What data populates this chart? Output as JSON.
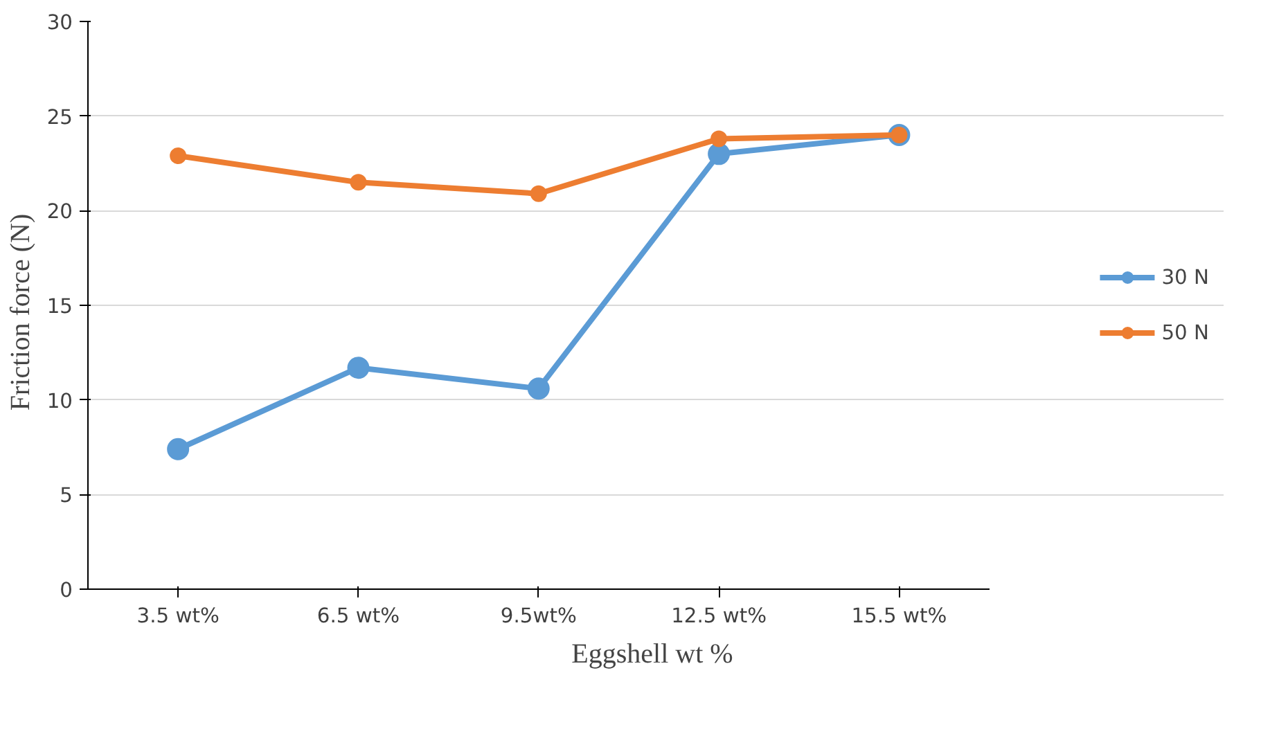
{
  "chart_data": {
    "type": "line",
    "xlabel": "Eggshell  wt %",
    "ylabel": "Friction  force  (N)",
    "categories": [
      "3.5 wt%",
      "6.5 wt%",
      "9.5wt%",
      "12.5 wt%",
      "15.5 wt%"
    ],
    "series": [
      {
        "name": "30 N",
        "color": "#5b9bd5",
        "values": [
          7.4,
          11.7,
          10.6,
          23.0,
          24.0
        ]
      },
      {
        "name": "50 N",
        "color": "#ed7d31",
        "values": [
          22.9,
          21.5,
          20.9,
          23.8,
          24.0
        ]
      }
    ],
    "ylim": [
      0,
      30
    ],
    "yticks": [
      0,
      5,
      10,
      15,
      20,
      25,
      30
    ],
    "grid": "y",
    "legend": "right",
    "marker": "circle",
    "line_style": "solid"
  }
}
